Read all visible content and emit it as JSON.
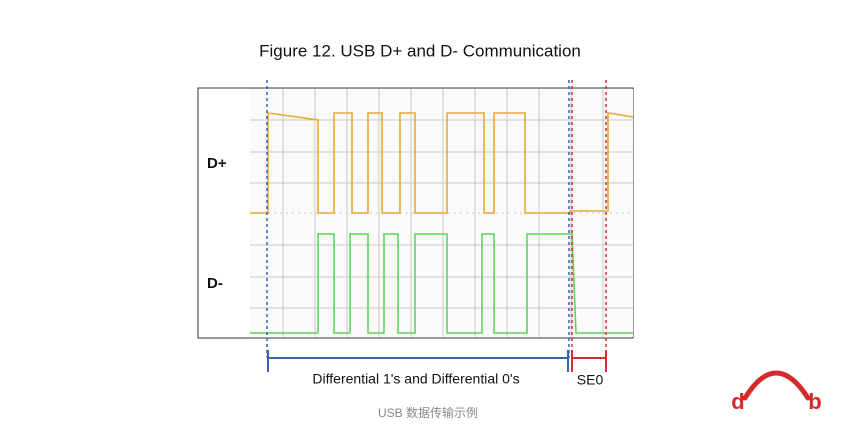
{
  "title": "Figure 12. USB D+ and D- Communication",
  "signals": [
    "D+",
    "D-"
  ],
  "brackets": {
    "differential": "Differential 1's and Differential 0's",
    "se0": "SE0"
  },
  "caption": "USB 数据传输示例",
  "logo": [
    "d",
    "b"
  ]
}
